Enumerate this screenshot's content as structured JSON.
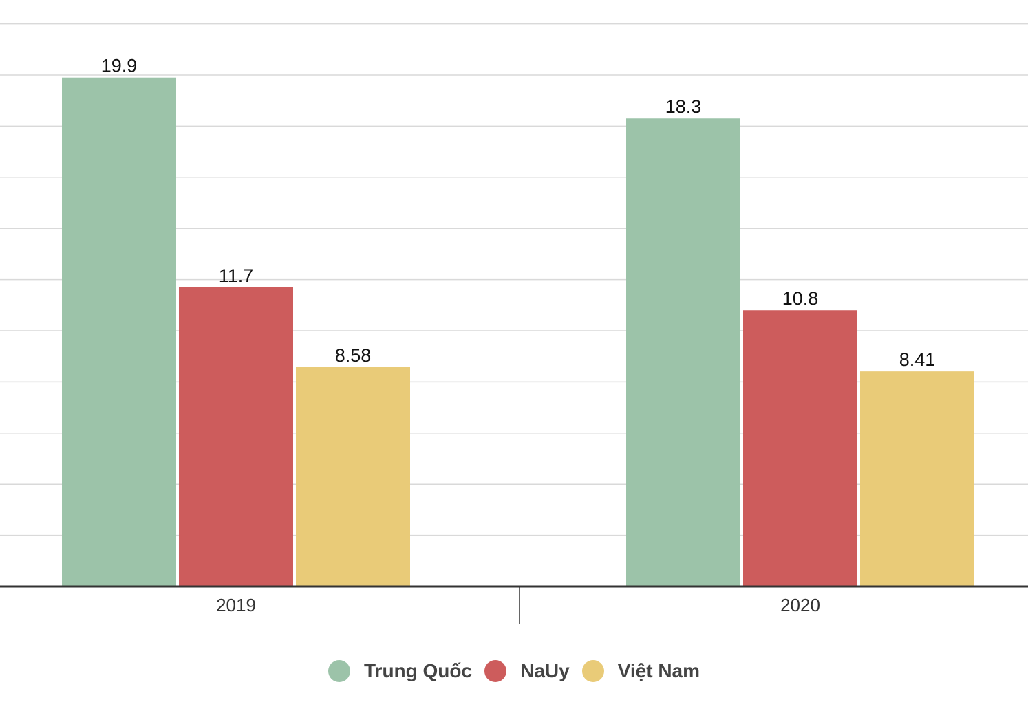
{
  "chart_data": {
    "type": "bar",
    "title": "",
    "xlabel": "",
    "ylabel": "",
    "categories": [
      "2019",
      "2020"
    ],
    "series": [
      {
        "name": "Trung Quốc",
        "values": [
          19.9,
          18.3
        ],
        "labels": [
          "19.9",
          "18.3"
        ],
        "color": "#9cc3a9"
      },
      {
        "name": "NaUy",
        "values": [
          11.7,
          10.8
        ],
        "labels": [
          "11.7",
          "10.8"
        ],
        "color": "#cd5c5c"
      },
      {
        "name": "Việt Nam",
        "values": [
          8.58,
          8.41
        ],
        "labels": [
          "8.58",
          "8.41"
        ],
        "color": "#e9cb78"
      }
    ],
    "ylim": [
      0,
      22
    ],
    "grid": true,
    "legend_position": "bottom"
  }
}
